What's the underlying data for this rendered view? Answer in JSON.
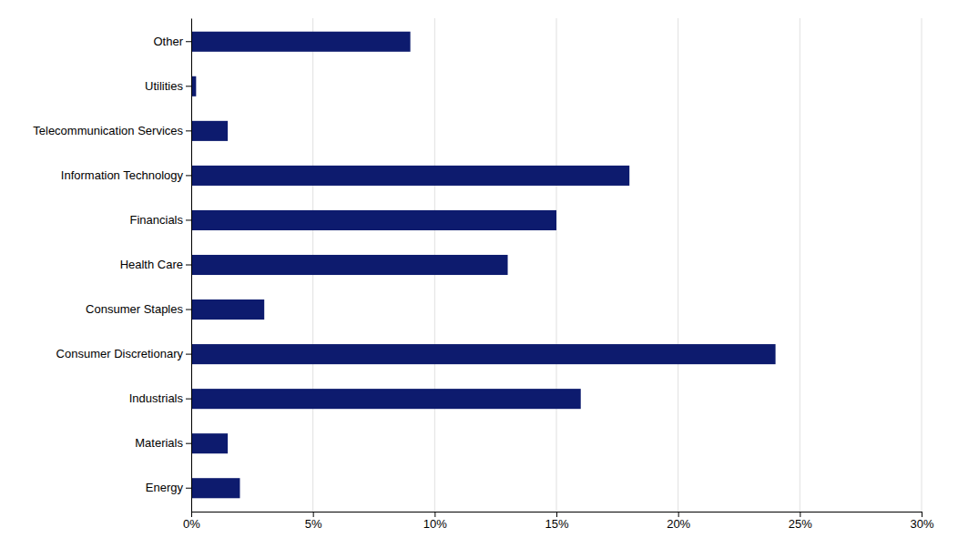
{
  "chart_data": {
    "type": "bar",
    "orientation": "horizontal",
    "categories": [
      "Other",
      "Utilities",
      "Telecommunication Services",
      "Information Technology",
      "Financials",
      "Health Care",
      "Consumer Staples",
      "Consumer Discretionary",
      "Industrials",
      "Materials",
      "Energy"
    ],
    "values": [
      0.09,
      0.002,
      0.015,
      0.18,
      0.15,
      0.13,
      0.03,
      0.24,
      0.16,
      0.015,
      0.02
    ],
    "color": "#0d1b6e",
    "xlim": [
      0,
      0.3
    ],
    "xticks": [
      {
        "value": 0.0,
        "label": "0%"
      },
      {
        "value": 0.05,
        "label": "5%"
      },
      {
        "value": 0.1,
        "label": "10%"
      },
      {
        "value": 0.15,
        "label": "15%"
      },
      {
        "value": 0.2,
        "label": "20%"
      },
      {
        "value": 0.25,
        "label": "25%"
      },
      {
        "value": 0.3,
        "label": "30%"
      }
    ],
    "grid": true
  }
}
